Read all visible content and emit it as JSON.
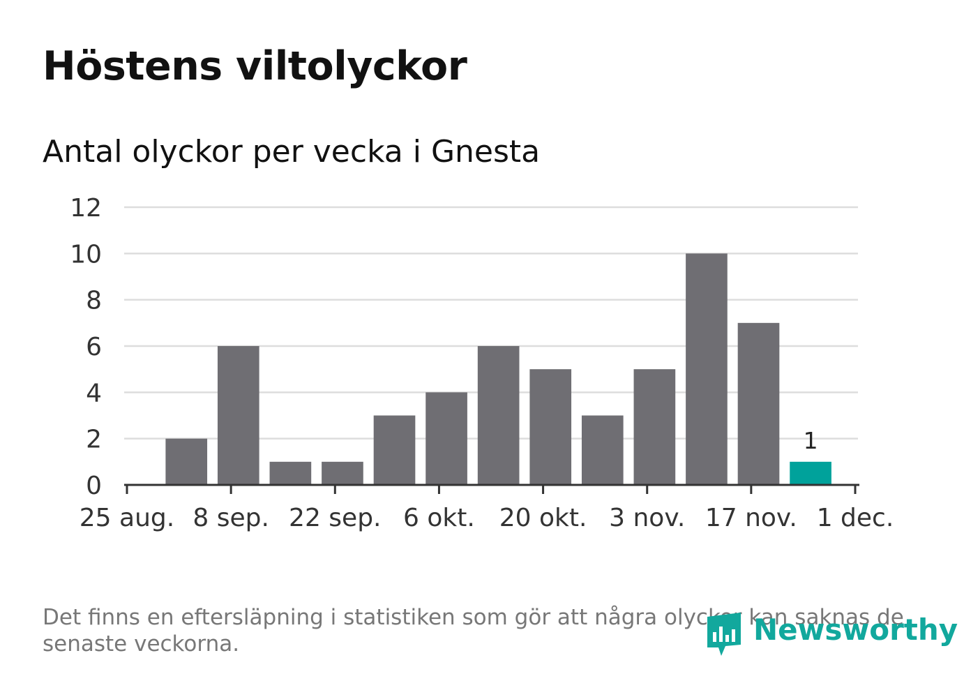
{
  "title": "Höstens viltolyckor",
  "subtitle": "Antal olyckor per vecka i Gnesta",
  "footnote": "Det finns en eftersläpning i statistiken som gör att några olyckor kan saknas de senaste veckorna.",
  "brand": {
    "name": "Newsworthy",
    "color": "#12a89d",
    "icon": "newsworthy-logo-icon"
  },
  "colors": {
    "bar": "#6f6e73",
    "highlight": "#00a29b",
    "grid": "#dddddd",
    "axis": "#333333"
  },
  "chart_data": {
    "type": "bar",
    "title": "Höstens viltolyckor",
    "subtitle": "Antal olyckor per vecka i Gnesta",
    "xlabel": "",
    "ylabel": "",
    "x_axis_type": "date",
    "x_ticks": [
      "2024-08-25",
      "2024-09-08",
      "2024-09-22",
      "2024-10-06",
      "2024-10-20",
      "2024-11-03",
      "2024-11-17",
      "2024-12-01"
    ],
    "x_tick_labels": [
      "25 aug.",
      "8 sep.",
      "22 sep.",
      "6 okt.",
      "20 okt.",
      "3 nov.",
      "17 nov.",
      "1 dec."
    ],
    "x": [
      "2024-09-02",
      "2024-09-09",
      "2024-09-16",
      "2024-09-23",
      "2024-09-30",
      "2024-10-07",
      "2024-10-14",
      "2024-10-21",
      "2024-10-28",
      "2024-11-04",
      "2024-11-11",
      "2024-11-18",
      "2024-11-25"
    ],
    "values": [
      2,
      6,
      1,
      1,
      3,
      4,
      6,
      5,
      3,
      5,
      10,
      7,
      1
    ],
    "highlight_index": 12,
    "data_labels": [
      {
        "index": 12,
        "text": "1"
      }
    ],
    "ylim": [
      0,
      12
    ],
    "yticks": [
      0,
      2,
      4,
      6,
      8,
      10,
      12
    ],
    "xlim": [
      "2024-08-25",
      "2024-12-01"
    ],
    "grid": true,
    "legend": "none"
  }
}
